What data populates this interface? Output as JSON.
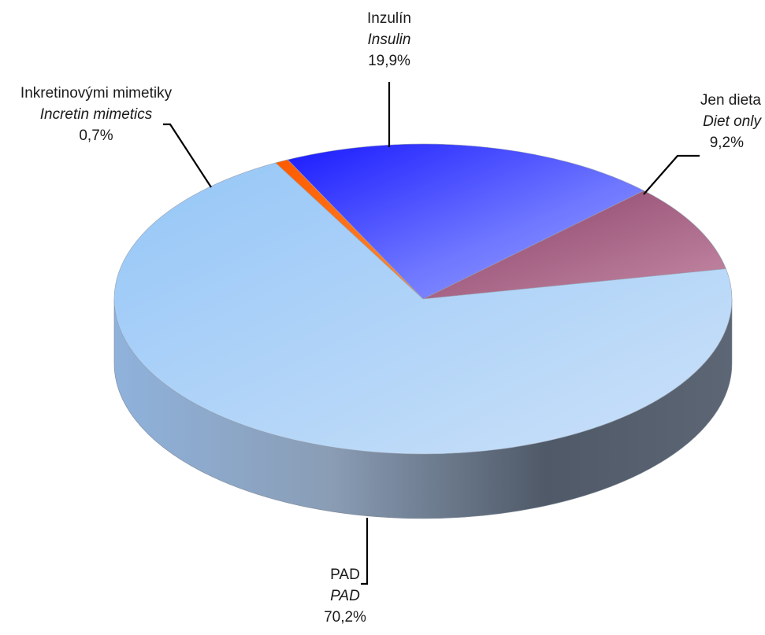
{
  "chart_data": {
    "type": "pie",
    "style": "3d",
    "slices": [
      {
        "label": "Inzulín",
        "label_en": "Insulin",
        "value": 19.9,
        "value_text": "19,9%",
        "color": "#5c66ff"
      },
      {
        "label": "Jen dieta",
        "label_en": "Diet only",
        "value": 9.2,
        "value_text": "9,2%",
        "color": "#a85a84"
      },
      {
        "label": "PAD",
        "label_en": "PAD",
        "value": 70.2,
        "value_text": "70,2%",
        "color": "#aed0f7"
      },
      {
        "label": "Inkretinovými mimetiky",
        "label_en": "Incretin mimetics",
        "value": 0.7,
        "value_text": "0,7%",
        "color": "#ff6600"
      }
    ]
  }
}
